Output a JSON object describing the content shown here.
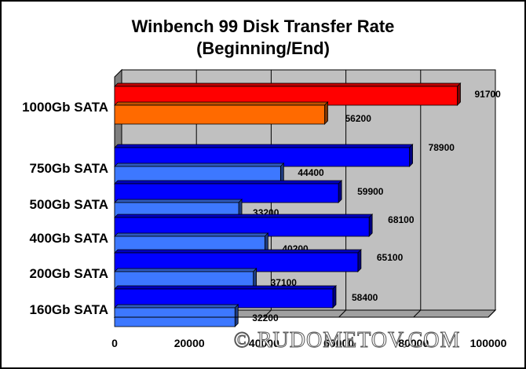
{
  "chart_data": {
    "type": "bar",
    "orientation": "horizontal",
    "title": "Winbench 99 Disk Transfer Rate",
    "subtitle": "(Beginning/End)",
    "categories": [
      "1000Gb SATA",
      "750Gb SATA",
      "500Gb SATA",
      "400Gb SATA",
      "200Gb SATA",
      "160Gb SATA"
    ],
    "series": [
      {
        "values": [
          91700,
          78900,
          59900,
          68100,
          65100,
          58400
        ]
      },
      {
        "values": [
          56200,
          44400,
          33200,
          40200,
          37100,
          32200
        ]
      }
    ],
    "xlim": [
      0,
      100000
    ],
    "xticks": [
      "0",
      "20000",
      "40000",
      "60000",
      "80000",
      "100000"
    ],
    "grid": true,
    "legend": "none",
    "colors": {
      "highlight_begin": "#ff0000",
      "highlight_end": "#ff6a00",
      "begin": "#0000ff",
      "end": "#3d78ff",
      "plot_background": "#c0c0c0",
      "floor": "#7f7f7f"
    }
  },
  "watermark": "© RUDOMETOV.COM"
}
